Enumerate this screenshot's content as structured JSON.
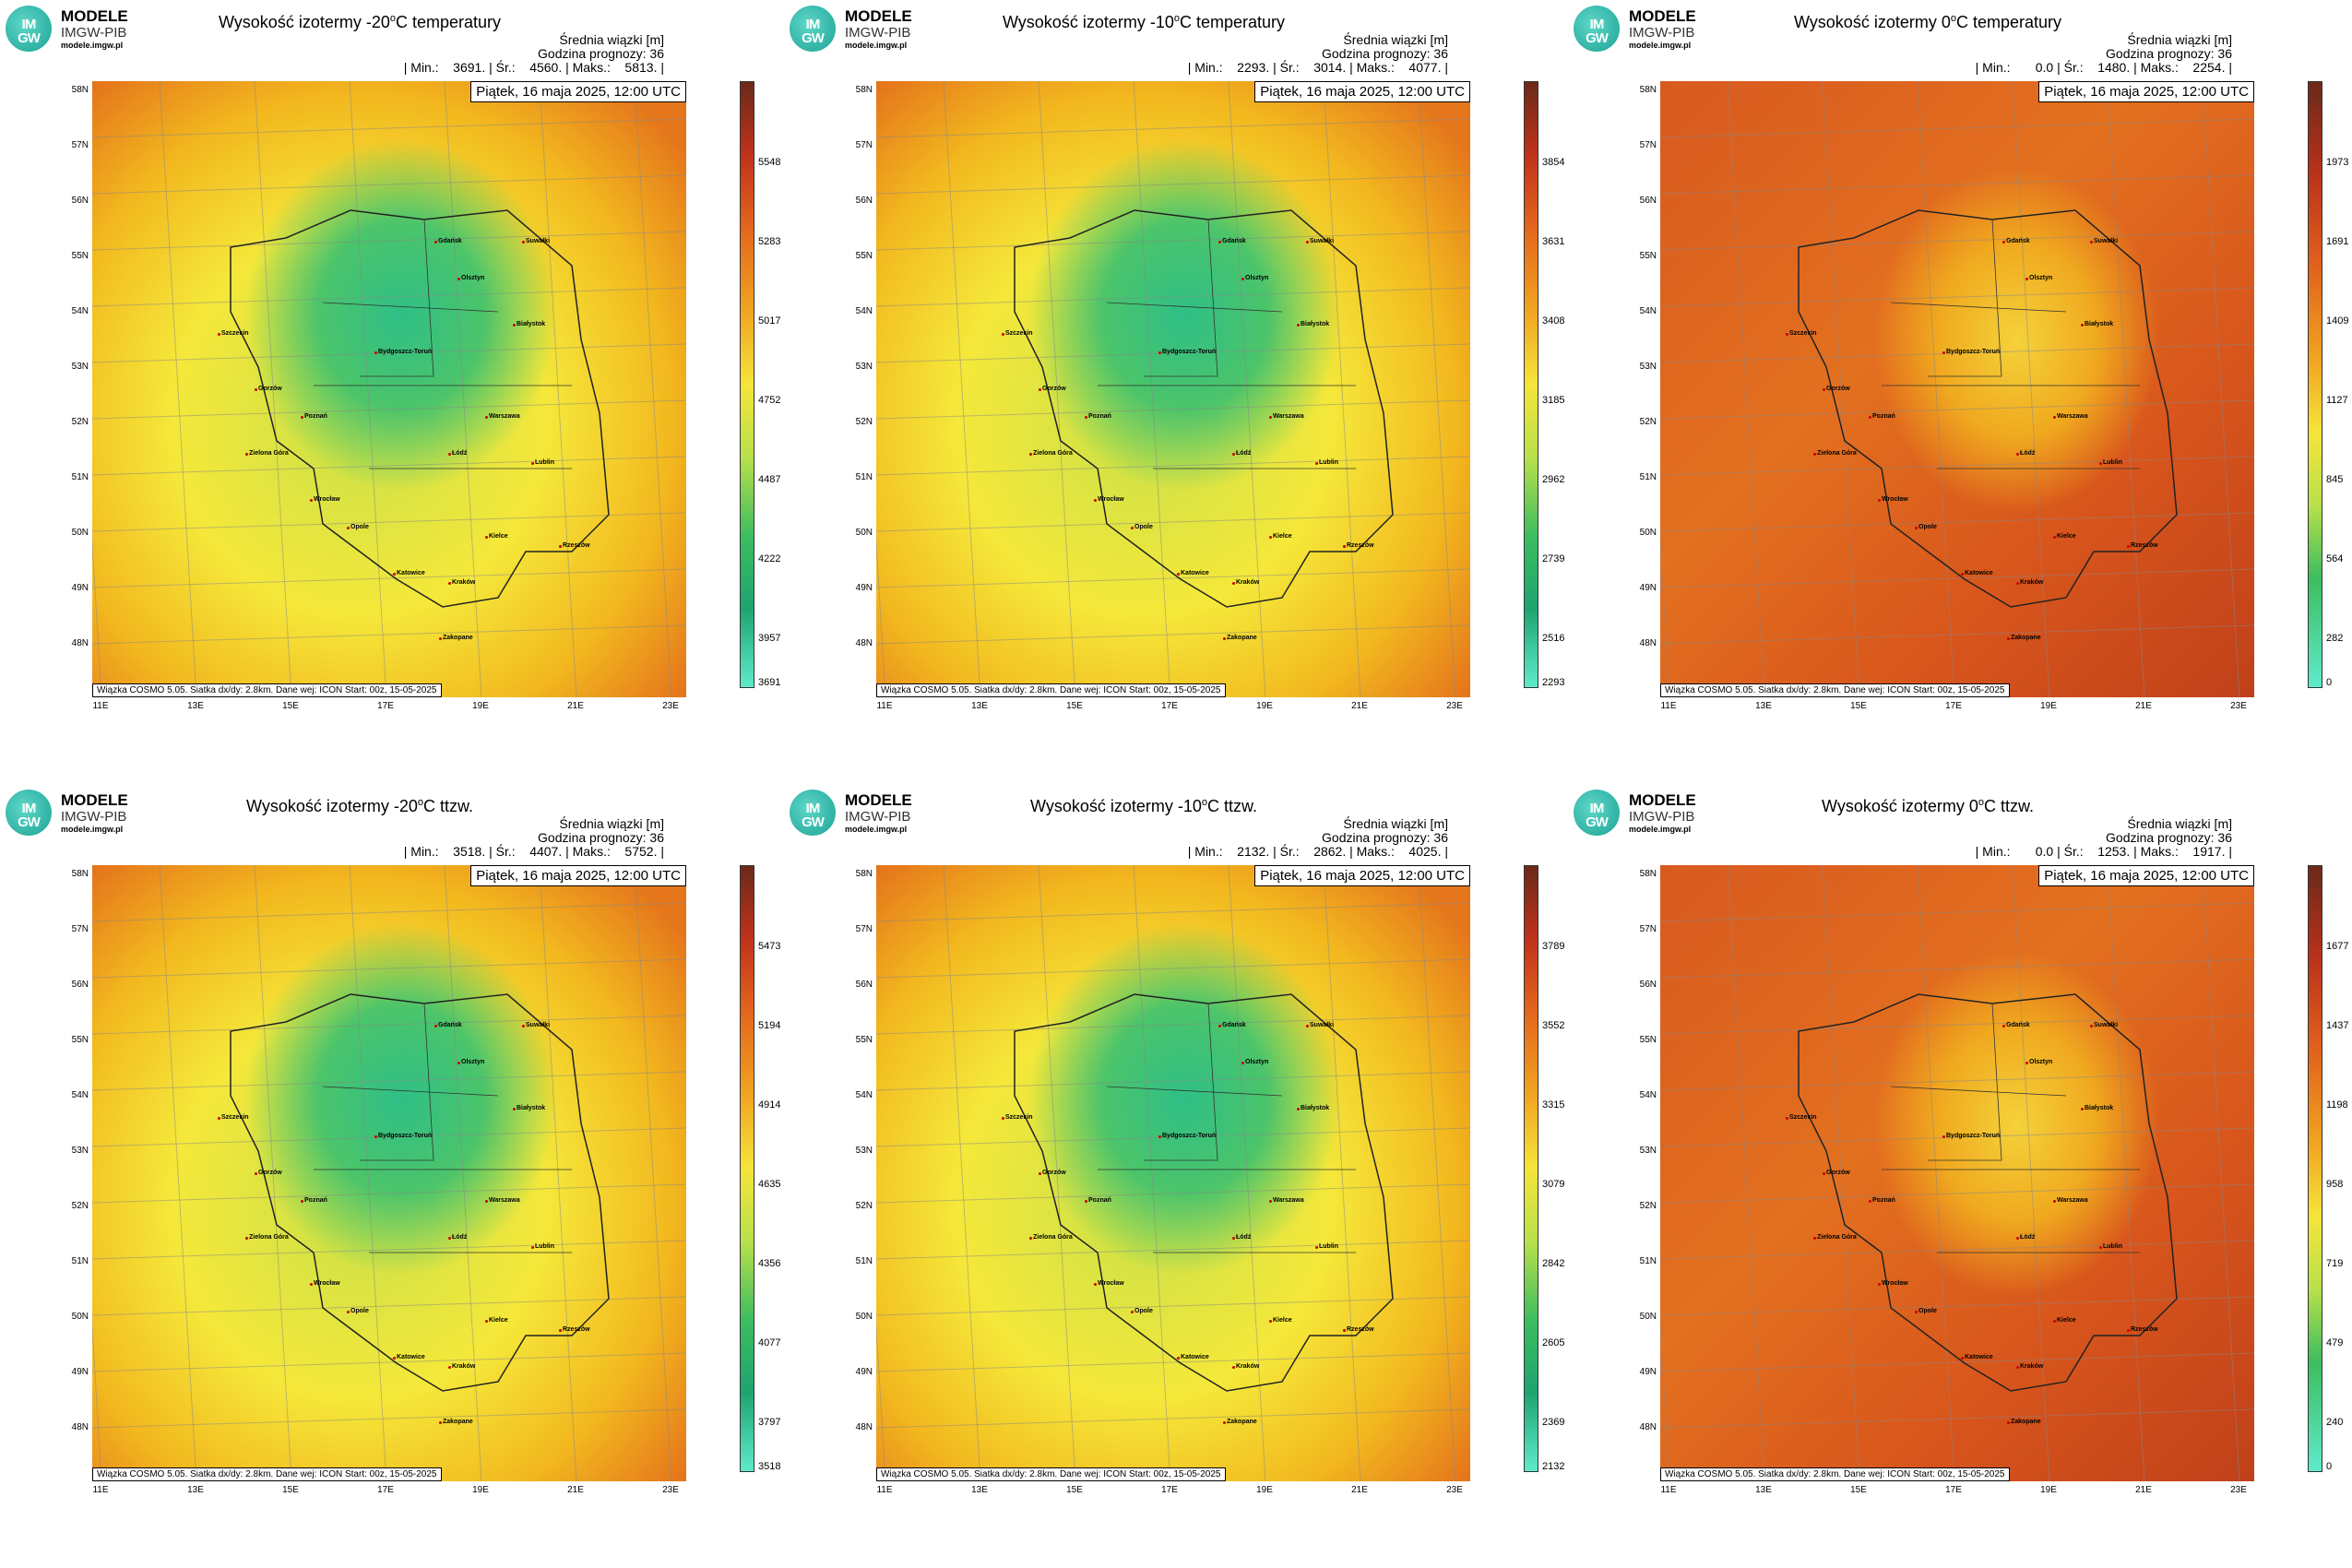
{
  "logo": {
    "mark_top": "IM",
    "mark_bottom": "GW",
    "word": "MODELE",
    "sub": "IMGW-PIB",
    "url": "modele.imgw.pl"
  },
  "info": {
    "line1": "Średnia wiązki [m]",
    "line2": "Godzina prognozy: 36"
  },
  "date": "Piątek, 16 maja 2025, 12:00 UTC",
  "footer": "Wiązka COSMO 5.05. Siatka dx/dy: 2.8km. Dane wej: ICON Start: 00z, 15-05-2025",
  "lat_ticks": [
    "58N",
    "57N",
    "56N",
    "55N",
    "54N",
    "53N",
    "52N",
    "51N",
    "50N",
    "49N",
    "48N"
  ],
  "lon_ticks": [
    "11E",
    "13E",
    "15E",
    "17E",
    "19E",
    "21E",
    "23E"
  ],
  "cities": [
    "Gdańsk",
    "Olsztyn",
    "Suwałki",
    "Białystok",
    "Szczecin",
    "Bydgoszcz-Toruń",
    "Gorzów",
    "Poznań",
    "Warszawa",
    "Zielona Góra",
    "Łódź",
    "Lublin",
    "Wrocław",
    "Opole",
    "Kielce",
    "Rzeszów",
    "Katowice",
    "Kraków",
    "Zakopane"
  ],
  "panels": [
    {
      "title_pre": "Wysokość izotermy -20",
      "title_sup": "o",
      "title_post": "C temperatury",
      "stats": "| Min.:    3691. | Śr.:    4560. | Maks.:    5813. |",
      "cbar_labels": [
        "5548",
        "5283",
        "5017",
        "4752",
        "4487",
        "4222",
        "3957",
        "3691"
      ],
      "scheme": "cool"
    },
    {
      "title_pre": "Wysokość izotermy -10",
      "title_sup": "o",
      "title_post": "C temperatury",
      "stats": "| Min.:    2293. | Śr.:    3014. | Maks.:    4077. |",
      "cbar_labels": [
        "3854",
        "3631",
        "3408",
        "3185",
        "2962",
        "2739",
        "2516",
        "2293"
      ],
      "scheme": "cool"
    },
    {
      "title_pre": "Wysokość izotermy 0",
      "title_sup": "o",
      "title_post": "C temperatury",
      "stats": "| Min.:       0.0 | Śr.:    1480. | Maks.:    2254. |",
      "cbar_labels": [
        "1973",
        "1691",
        "1409",
        "1127",
        "845",
        "564",
        "282",
        "0"
      ],
      "scheme": "warm"
    },
    {
      "title_pre": "Wysokość izotermy -20",
      "title_sup": "o",
      "title_post": "C ttzw.",
      "stats": "| Min.:    3518. | Śr.:    4407. | Maks.:    5752. |",
      "cbar_labels": [
        "5473",
        "5194",
        "4914",
        "4635",
        "4356",
        "4077",
        "3797",
        "3518"
      ],
      "scheme": "cool"
    },
    {
      "title_pre": "Wysokość izotermy -10",
      "title_sup": "o",
      "title_post": "C ttzw.",
      "stats": "| Min.:    2132. | Śr.:    2862. | Maks.:    4025. |",
      "cbar_labels": [
        "3789",
        "3552",
        "3315",
        "3079",
        "2842",
        "2605",
        "2369",
        "2132"
      ],
      "scheme": "cool"
    },
    {
      "title_pre": "Wysokość izotermy 0",
      "title_sup": "o",
      "title_post": "C ttzw.",
      "stats": "| Min.:       0.0 | Śr.:    1253. | Maks.:    1917. |",
      "cbar_labels": [
        "1677",
        "1437",
        "1198",
        "958",
        "719",
        "479",
        "240",
        "0"
      ],
      "scheme": "warm"
    }
  ]
}
